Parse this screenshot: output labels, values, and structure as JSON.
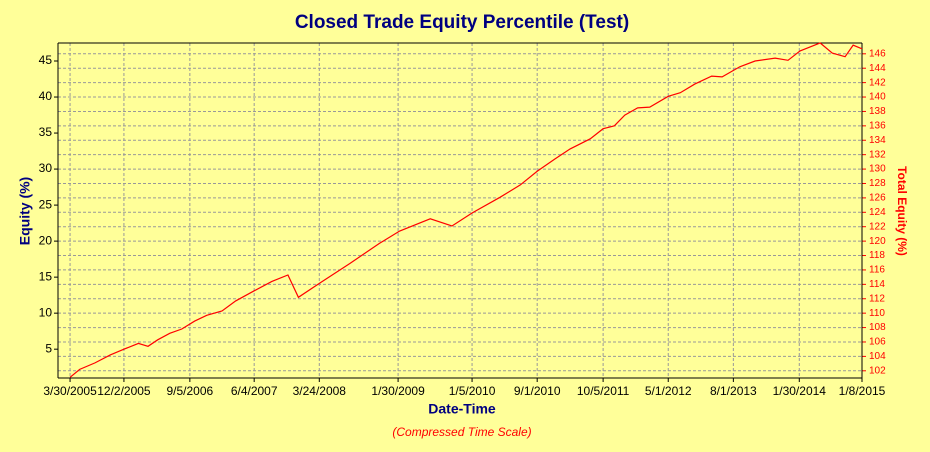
{
  "chart_data": {
    "type": "line",
    "title": "Closed Trade Equity Percentile (Test)",
    "xlabel": "Date-Time",
    "ylabel": "Equity (%)",
    "y2label": "Total Equity (%)",
    "note": "(Compressed Time Scale)",
    "x": [
      1.5,
      2.7,
      4.6,
      6.5,
      8.2,
      10,
      11.2,
      12.4,
      13.9,
      15.4,
      17,
      18.5,
      20.4,
      22.1,
      24.4,
      26.6,
      28.6,
      29.9,
      32.6,
      36.3,
      40,
      42.5,
      46.3,
      49,
      51.5,
      55,
      57.5,
      59.6,
      61.8,
      63.7,
      66.2,
      67.8,
      69.2,
      70.5,
      72.1,
      73.6,
      75.9,
      77.4,
      79.2,
      81.3,
      82.6,
      84.8,
      86.7,
      89.2,
      90.8,
      92.3,
      94.8,
      96.3,
      97.9,
      98.9,
      100
    ],
    "series": [
      {
        "name": "Equity",
        "color": "#ff0000",
        "values": [
          1.1,
          2.2,
          3.1,
          4.2,
          5,
          5.8,
          5.4,
          6.3,
          7.2,
          7.8,
          8.9,
          9.7,
          10.3,
          11.7,
          13.1,
          14.4,
          15.3,
          12.2,
          14.2,
          16.9,
          19.7,
          21.4,
          23.1,
          22.1,
          23.9,
          26.1,
          27.8,
          29.7,
          31.4,
          32.8,
          34.2,
          35.6,
          36,
          37.5,
          38.5,
          38.6,
          40.1,
          40.6,
          41.8,
          42.9,
          42.8,
          44.2,
          45,
          45.4,
          45.1,
          46.4,
          47.5,
          46.1,
          45.6,
          47.2,
          46.7
        ]
      }
    ],
    "xlim": [
      0,
      100
    ],
    "xticks": [
      {
        "value": 1.5,
        "label": "3/30/2005"
      },
      {
        "value": 8.2,
        "label": "12/2/2005"
      },
      {
        "value": 16.4,
        "label": "9/5/2006"
      },
      {
        "value": 24.4,
        "label": "6/4/2007"
      },
      {
        "value": 32.5,
        "label": "3/24/2008"
      },
      {
        "value": 42.3,
        "label": "1/30/2009"
      },
      {
        "value": 51.5,
        "label": "1/5/2010"
      },
      {
        "value": 59.6,
        "label": "9/1/2010"
      },
      {
        "value": 67.8,
        "label": "10/5/2011"
      },
      {
        "value": 75.9,
        "label": "5/1/2012"
      },
      {
        "value": 84,
        "label": "8/1/2013"
      },
      {
        "value": 92.2,
        "label": "1/30/2014"
      },
      {
        "value": 100,
        "label": "1/8/2015"
      }
    ],
    "ylim": [
      1,
      47.5
    ],
    "yticks": [
      5,
      10,
      15,
      20,
      25,
      30,
      35,
      40,
      45
    ],
    "y2lim": [
      101,
      147.5
    ],
    "y2ticks": [
      102,
      104,
      106,
      108,
      110,
      112,
      114,
      116,
      118,
      120,
      122,
      124,
      126,
      128,
      130,
      132,
      134,
      136,
      138,
      140,
      142,
      144,
      146
    ],
    "grid": true
  }
}
